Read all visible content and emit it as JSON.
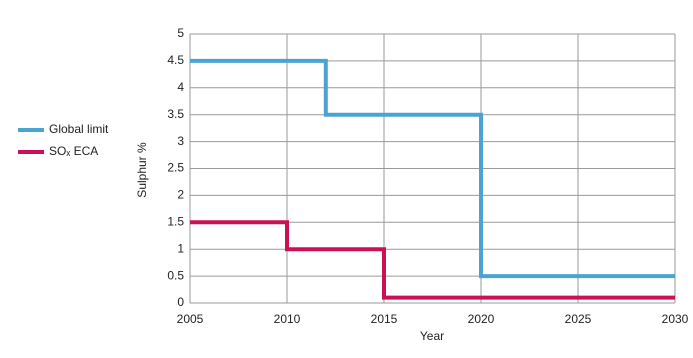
{
  "chart_data": {
    "type": "line",
    "x_label": "Year",
    "y_label": "Sulphur %",
    "xlim": [
      2005,
      2030
    ],
    "xticks": [
      2005,
      2010,
      2015,
      2020,
      2025,
      2030
    ],
    "ylim": [
      0,
      5
    ],
    "yticks": [
      0,
      0.5,
      1,
      1.5,
      2,
      2.5,
      3,
      3.5,
      4,
      4.5,
      5
    ],
    "grid": true,
    "legend": "left",
    "series": [
      {
        "name": "Global limit",
        "color": "#4ba3d3",
        "x": [
          2005,
          2012,
          2012,
          2020,
          2020,
          2030
        ],
        "values": [
          4.5,
          4.5,
          3.5,
          3.5,
          0.5,
          0.5
        ]
      },
      {
        "name": "SOₓ ECA",
        "color": "#cc1056",
        "x": [
          2005,
          2010,
          2010,
          2015,
          2015,
          2030
        ],
        "values": [
          1.5,
          1.5,
          1,
          1,
          0.1,
          0.1
        ]
      }
    ]
  }
}
